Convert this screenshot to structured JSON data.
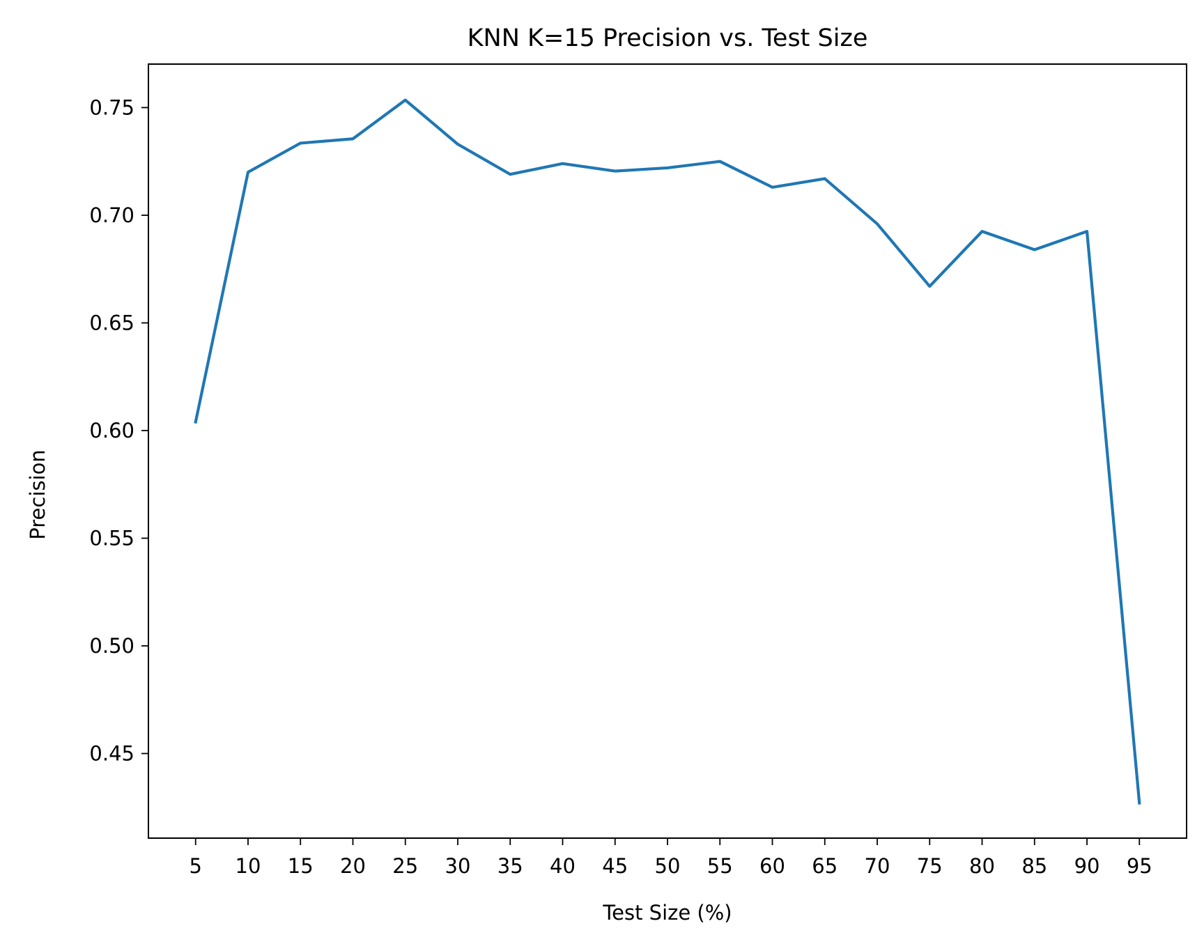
{
  "chart_data": {
    "type": "line",
    "title": "KNN K=15  Precision vs. Test Size",
    "xlabel": "Test Size (%)",
    "ylabel": "Precision",
    "x": [
      5,
      10,
      15,
      20,
      25,
      30,
      35,
      40,
      45,
      50,
      55,
      60,
      65,
      70,
      75,
      80,
      85,
      90,
      95
    ],
    "series": [
      {
        "values": [
          0.604,
          0.72,
          0.7335,
          0.7355,
          0.7535,
          0.733,
          0.719,
          0.724,
          0.7205,
          0.722,
          0.725,
          0.713,
          0.717,
          0.696,
          0.667,
          0.6925,
          0.684,
          0.6925,
          0.427
        ],
        "color": "#1f77b4"
      }
    ],
    "xticks": [
      "5",
      "10",
      "15",
      "20",
      "25",
      "30",
      "35",
      "40",
      "45",
      "50",
      "55",
      "60",
      "65",
      "70",
      "75",
      "80",
      "85",
      "90",
      "95"
    ],
    "yticks": [
      "0.45",
      "0.50",
      "0.55",
      "0.60",
      "0.65",
      "0.70",
      "0.75"
    ],
    "xlim": [
      0.5,
      99.5
    ],
    "ylim": [
      0.4107,
      0.7702
    ],
    "grid": false,
    "legend": "none"
  }
}
